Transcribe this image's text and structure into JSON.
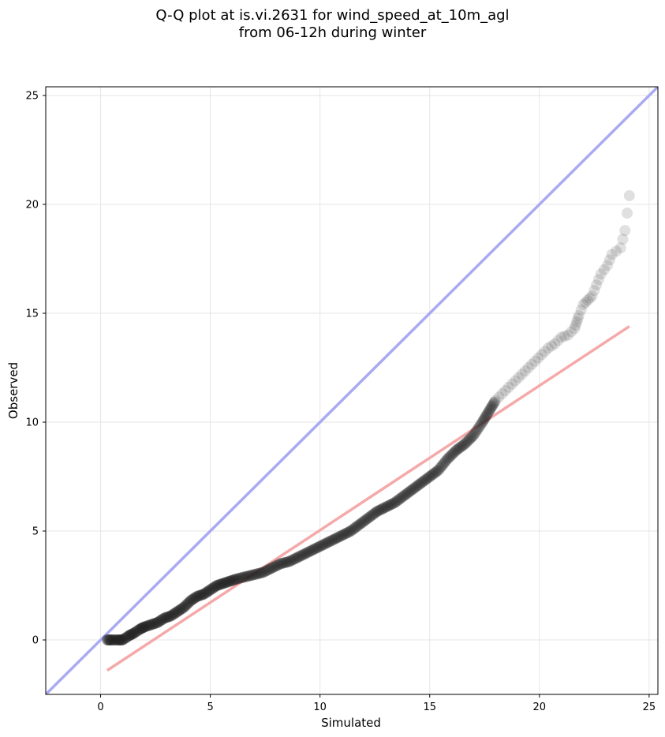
{
  "chart_data": {
    "type": "scatter",
    "title": "Q-Q plot at is.vi.2631 for wind_speed_at_10m_agl",
    "subtitle": "from 06-12h during winter",
    "xlabel": "Simulated",
    "ylabel": "Observed",
    "xlim": [
      -2.5,
      25.4
    ],
    "ylim": [
      -2.5,
      25.4
    ],
    "xticks": [
      0,
      5,
      10,
      15,
      20,
      25
    ],
    "yticks": [
      0,
      5,
      10,
      15,
      20,
      25
    ],
    "xtick_labels": [
      "0",
      "5",
      "10",
      "15",
      "20",
      "25"
    ],
    "ytick_labels": [
      "0",
      "5",
      "10",
      "15",
      "20",
      "25"
    ],
    "grid": true,
    "points_color": "#222222",
    "reference_line": {
      "slope": 1,
      "intercept": 0,
      "color": "#aaaaf2"
    },
    "fit_line": {
      "x": [
        0.3,
        24.1
      ],
      "y": [
        -1.4,
        14.4
      ],
      "color": "#f5a9a9"
    },
    "quantiles": {
      "x": [
        0.3,
        0.5,
        0.8,
        1.0,
        1.3,
        1.5,
        1.8,
        2.0,
        2.3,
        2.6,
        2.9,
        3.2,
        3.5,
        3.8,
        4.1,
        4.4,
        4.7,
        5.0,
        5.3,
        5.6,
        5.9,
        6.2,
        6.6,
        7.0,
        7.4,
        7.8,
        8.2,
        8.6,
        9.0,
        9.4,
        9.8,
        10.2,
        10.6,
        11.0,
        11.4,
        11.8,
        12.2,
        12.6,
        13.0,
        13.4,
        13.8,
        14.2,
        14.6,
        15.0,
        15.4,
        15.8,
        16.2,
        16.6,
        17.0,
        17.4,
        17.7,
        18.0,
        18.3,
        18.6,
        18.9,
        19.2,
        19.5,
        19.8,
        20.1,
        20.4,
        20.7,
        21.0,
        21.3,
        21.6,
        21.7,
        21.8,
        22.0,
        22.2,
        22.4,
        22.6,
        22.8,
        23.1,
        23.3,
        23.7,
        23.9,
        24.1
      ],
      "y": [
        0.0,
        0.0,
        0.0,
        0.0,
        0.2,
        0.3,
        0.5,
        0.6,
        0.7,
        0.8,
        1.0,
        1.1,
        1.3,
        1.5,
        1.8,
        2.0,
        2.1,
        2.3,
        2.5,
        2.6,
        2.7,
        2.8,
        2.9,
        3.0,
        3.1,
        3.3,
        3.5,
        3.6,
        3.8,
        4.0,
        4.2,
        4.4,
        4.6,
        4.8,
        5.0,
        5.3,
        5.6,
        5.9,
        6.1,
        6.3,
        6.6,
        6.9,
        7.2,
        7.5,
        7.8,
        8.3,
        8.7,
        9.0,
        9.4,
        10.0,
        10.5,
        11.0,
        11.3,
        11.6,
        11.9,
        12.2,
        12.5,
        12.8,
        13.1,
        13.4,
        13.6,
        13.9,
        14.0,
        14.3,
        14.6,
        14.9,
        15.4,
        15.6,
        15.8,
        16.3,
        16.8,
        17.2,
        17.7,
        18.0,
        18.8,
        20.4
      ]
    }
  }
}
